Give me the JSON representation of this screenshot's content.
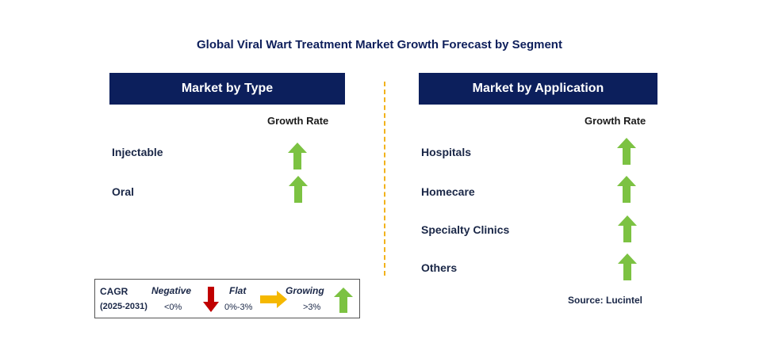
{
  "title": "Global Viral Wart Treatment Market Growth Forecast by Segment",
  "left_panel": {
    "header": "Market by Type",
    "growth_rate_label": "Growth Rate",
    "items": [
      {
        "label": "Injectable",
        "trend": "growing"
      },
      {
        "label": "Oral",
        "trend": "growing"
      }
    ]
  },
  "right_panel": {
    "header": "Market by Application",
    "growth_rate_label": "Growth Rate",
    "items": [
      {
        "label": "Hospitals",
        "trend": "growing"
      },
      {
        "label": "Homecare",
        "trend": "growing"
      },
      {
        "label": "Specialty Clinics",
        "trend": "growing"
      },
      {
        "label": "Others",
        "trend": "growing"
      }
    ]
  },
  "legend": {
    "cagr_label": "CAGR",
    "period": "(2025-2031)",
    "negative_label": "Negative",
    "negative_range": "<0%",
    "flat_label": "Flat",
    "flat_range": "0%-3%",
    "growing_label": "Growing",
    "growing_range": ">3%"
  },
  "source": "Source: Lucintel",
  "colors": {
    "header_bg": "#0c1f5c",
    "growing_arrow": "#7cc242",
    "negative_arrow": "#c00000",
    "flat_arrow": "#f5b800",
    "divider": "#f2b21b"
  }
}
